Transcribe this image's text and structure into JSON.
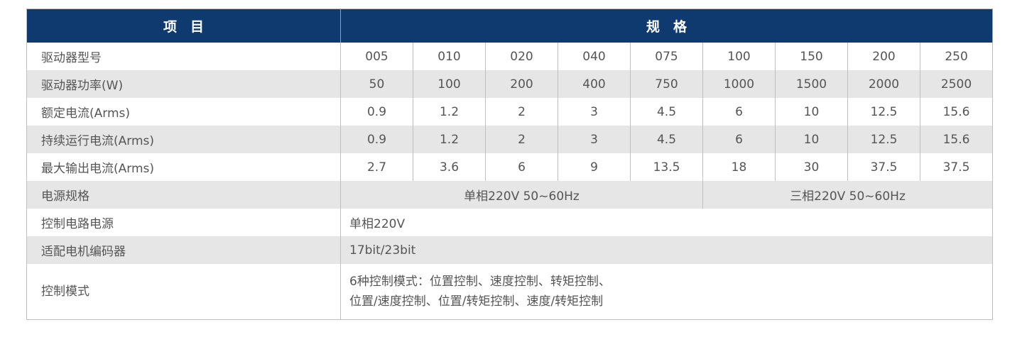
{
  "header": {
    "item": "项　目",
    "spec": "规　格"
  },
  "rows": [
    {
      "label": "驱动器型号",
      "values": [
        "005",
        "010",
        "020",
        "040",
        "075",
        "100",
        "150",
        "200",
        "250"
      ]
    },
    {
      "label": "驱动器功率(W)",
      "values": [
        "50",
        "100",
        "200",
        "400",
        "750",
        "1000",
        "1500",
        "2000",
        "2500"
      ]
    },
    {
      "label": "额定电流(Arms)",
      "values": [
        "0.9",
        "1.2",
        "2",
        "3",
        "4.5",
        "6",
        "10",
        "12.5",
        "15.6"
      ]
    },
    {
      "label": "持续运行电流(Arms)",
      "values": [
        "0.9",
        "1.2",
        "2",
        "3",
        "4.5",
        "6",
        "10",
        "12.5",
        "15.6"
      ]
    },
    {
      "label": "最大输出电流(Arms)",
      "values": [
        "2.7",
        "3.6",
        "6",
        "9",
        "13.5",
        "18",
        "30",
        "37.5",
        "37.5"
      ]
    }
  ],
  "power": {
    "label": "电源规格",
    "single": "单相220V 50~60Hz",
    "three": "三相220V 50~60Hz"
  },
  "control_power": {
    "label": "控制电路电源",
    "value": "单相220V"
  },
  "encoder": {
    "label": "适配电机编码器",
    "value": "17bit/23bit"
  },
  "modes": {
    "label": "控制模式",
    "line1": "6种控制模式：位置控制、速度控制、转矩控制、",
    "line2": "位置/速度控制、位置/转矩控制、速度/转矩控制"
  },
  "colors": {
    "header_bg": "#0f3a6f",
    "stripe": "#e6e6e7"
  }
}
